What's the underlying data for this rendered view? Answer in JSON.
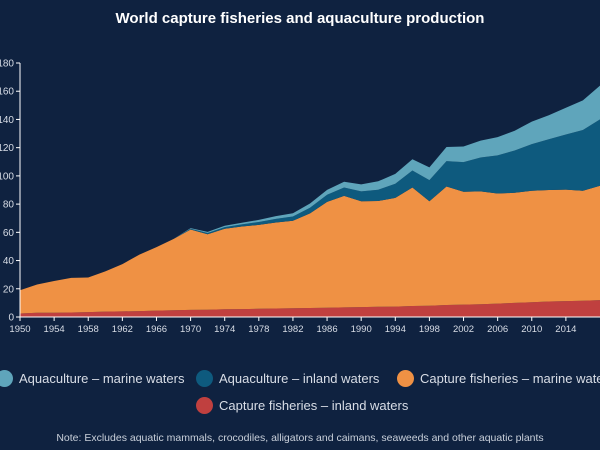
{
  "chart_data": {
    "type": "area",
    "stacked": true,
    "title": "World capture fisheries and aquaculture production",
    "xlabel": "",
    "ylabel": "",
    "xlim": [
      1950,
      2018
    ],
    "ylim": [
      0,
      180
    ],
    "yticks": [
      "0",
      "20",
      "40",
      "60",
      "80",
      "100",
      "120",
      "140",
      "160",
      "180"
    ],
    "xticks": [
      "1950",
      "1954",
      "1958",
      "1962",
      "1966",
      "1970",
      "1974",
      "1978",
      "1982",
      "1986",
      "1990",
      "1994",
      "1998",
      "2002",
      "2006",
      "2010",
      "2014"
    ],
    "grid": false,
    "legend_position": "bottom",
    "note": "Note: Excludes aquatic mammals, crocodiles, alligators and caimans, seaweeds and other aquatic plants",
    "x": [
      1950,
      1952,
      1954,
      1956,
      1958,
      1960,
      1962,
      1964,
      1966,
      1968,
      1970,
      1972,
      1974,
      1976,
      1978,
      1980,
      1982,
      1984,
      1986,
      1988,
      1990,
      1992,
      1994,
      1996,
      1998,
      2000,
      2002,
      2004,
      2006,
      2008,
      2010,
      2012,
      2014,
      2016,
      2018
    ],
    "series": [
      {
        "name": "Capture fisheries – inland waters",
        "color": "#c0403f",
        "values": [
          2.5,
          3,
          3,
          3.2,
          3.5,
          3.8,
          4,
          4.2,
          4.5,
          4.8,
          5,
          5.2,
          5.5,
          5.6,
          5.8,
          6,
          6.2,
          6.4,
          6.6,
          6.8,
          7,
          7.2,
          7.4,
          7.8,
          8,
          8.5,
          8.8,
          9,
          9.5,
          10,
          10.5,
          11,
          11.3,
          11.5,
          12
        ]
      },
      {
        "name": "Capture fisheries – marine waters",
        "color": "#ef9144",
        "values": [
          16.5,
          20,
          22.5,
          24.5,
          24.5,
          28.5,
          33.5,
          40,
          45,
          50.5,
          57,
          53.5,
          57,
          58.5,
          59.5,
          61,
          62,
          67,
          75,
          79,
          75,
          75,
          77,
          84,
          74,
          84,
          80,
          80,
          78,
          78,
          79,
          79,
          79,
          78,
          81
        ]
      },
      {
        "name": "Aquaculture – inland waters",
        "color": "#0e5a7e",
        "values": [
          0,
          0,
          0,
          0,
          0,
          0,
          0,
          0,
          0,
          0,
          0.5,
          0.8,
          1.2,
          1.5,
          2,
          2.5,
          3,
          4,
          5,
          6,
          7,
          8,
          10,
          12,
          15,
          18,
          21,
          24,
          27,
          30,
          33,
          36,
          39,
          43,
          47
        ]
      },
      {
        "name": "Aquaculture – marine waters",
        "color": "#5fa5bb",
        "values": [
          0,
          0,
          0,
          0,
          0,
          0,
          0,
          0,
          0,
          0,
          0.5,
          0.8,
          1,
          1.2,
          1.5,
          2,
          2.3,
          3,
          3.5,
          4,
          5,
          6,
          7,
          8,
          9,
          10,
          11,
          12,
          13,
          14,
          16,
          17,
          19,
          21,
          24
        ]
      }
    ]
  },
  "legend": {
    "items": [
      {
        "label": "Aquaculture – marine waters",
        "color": "#5fa5bb"
      },
      {
        "label": "Aquaculture – inland waters",
        "color": "#0e5a7e"
      },
      {
        "label": "Capture fisheries – marine waters",
        "color": "#ef9144"
      },
      {
        "label": "Capture fisheries – inland waters",
        "color": "#c0403f"
      }
    ]
  }
}
